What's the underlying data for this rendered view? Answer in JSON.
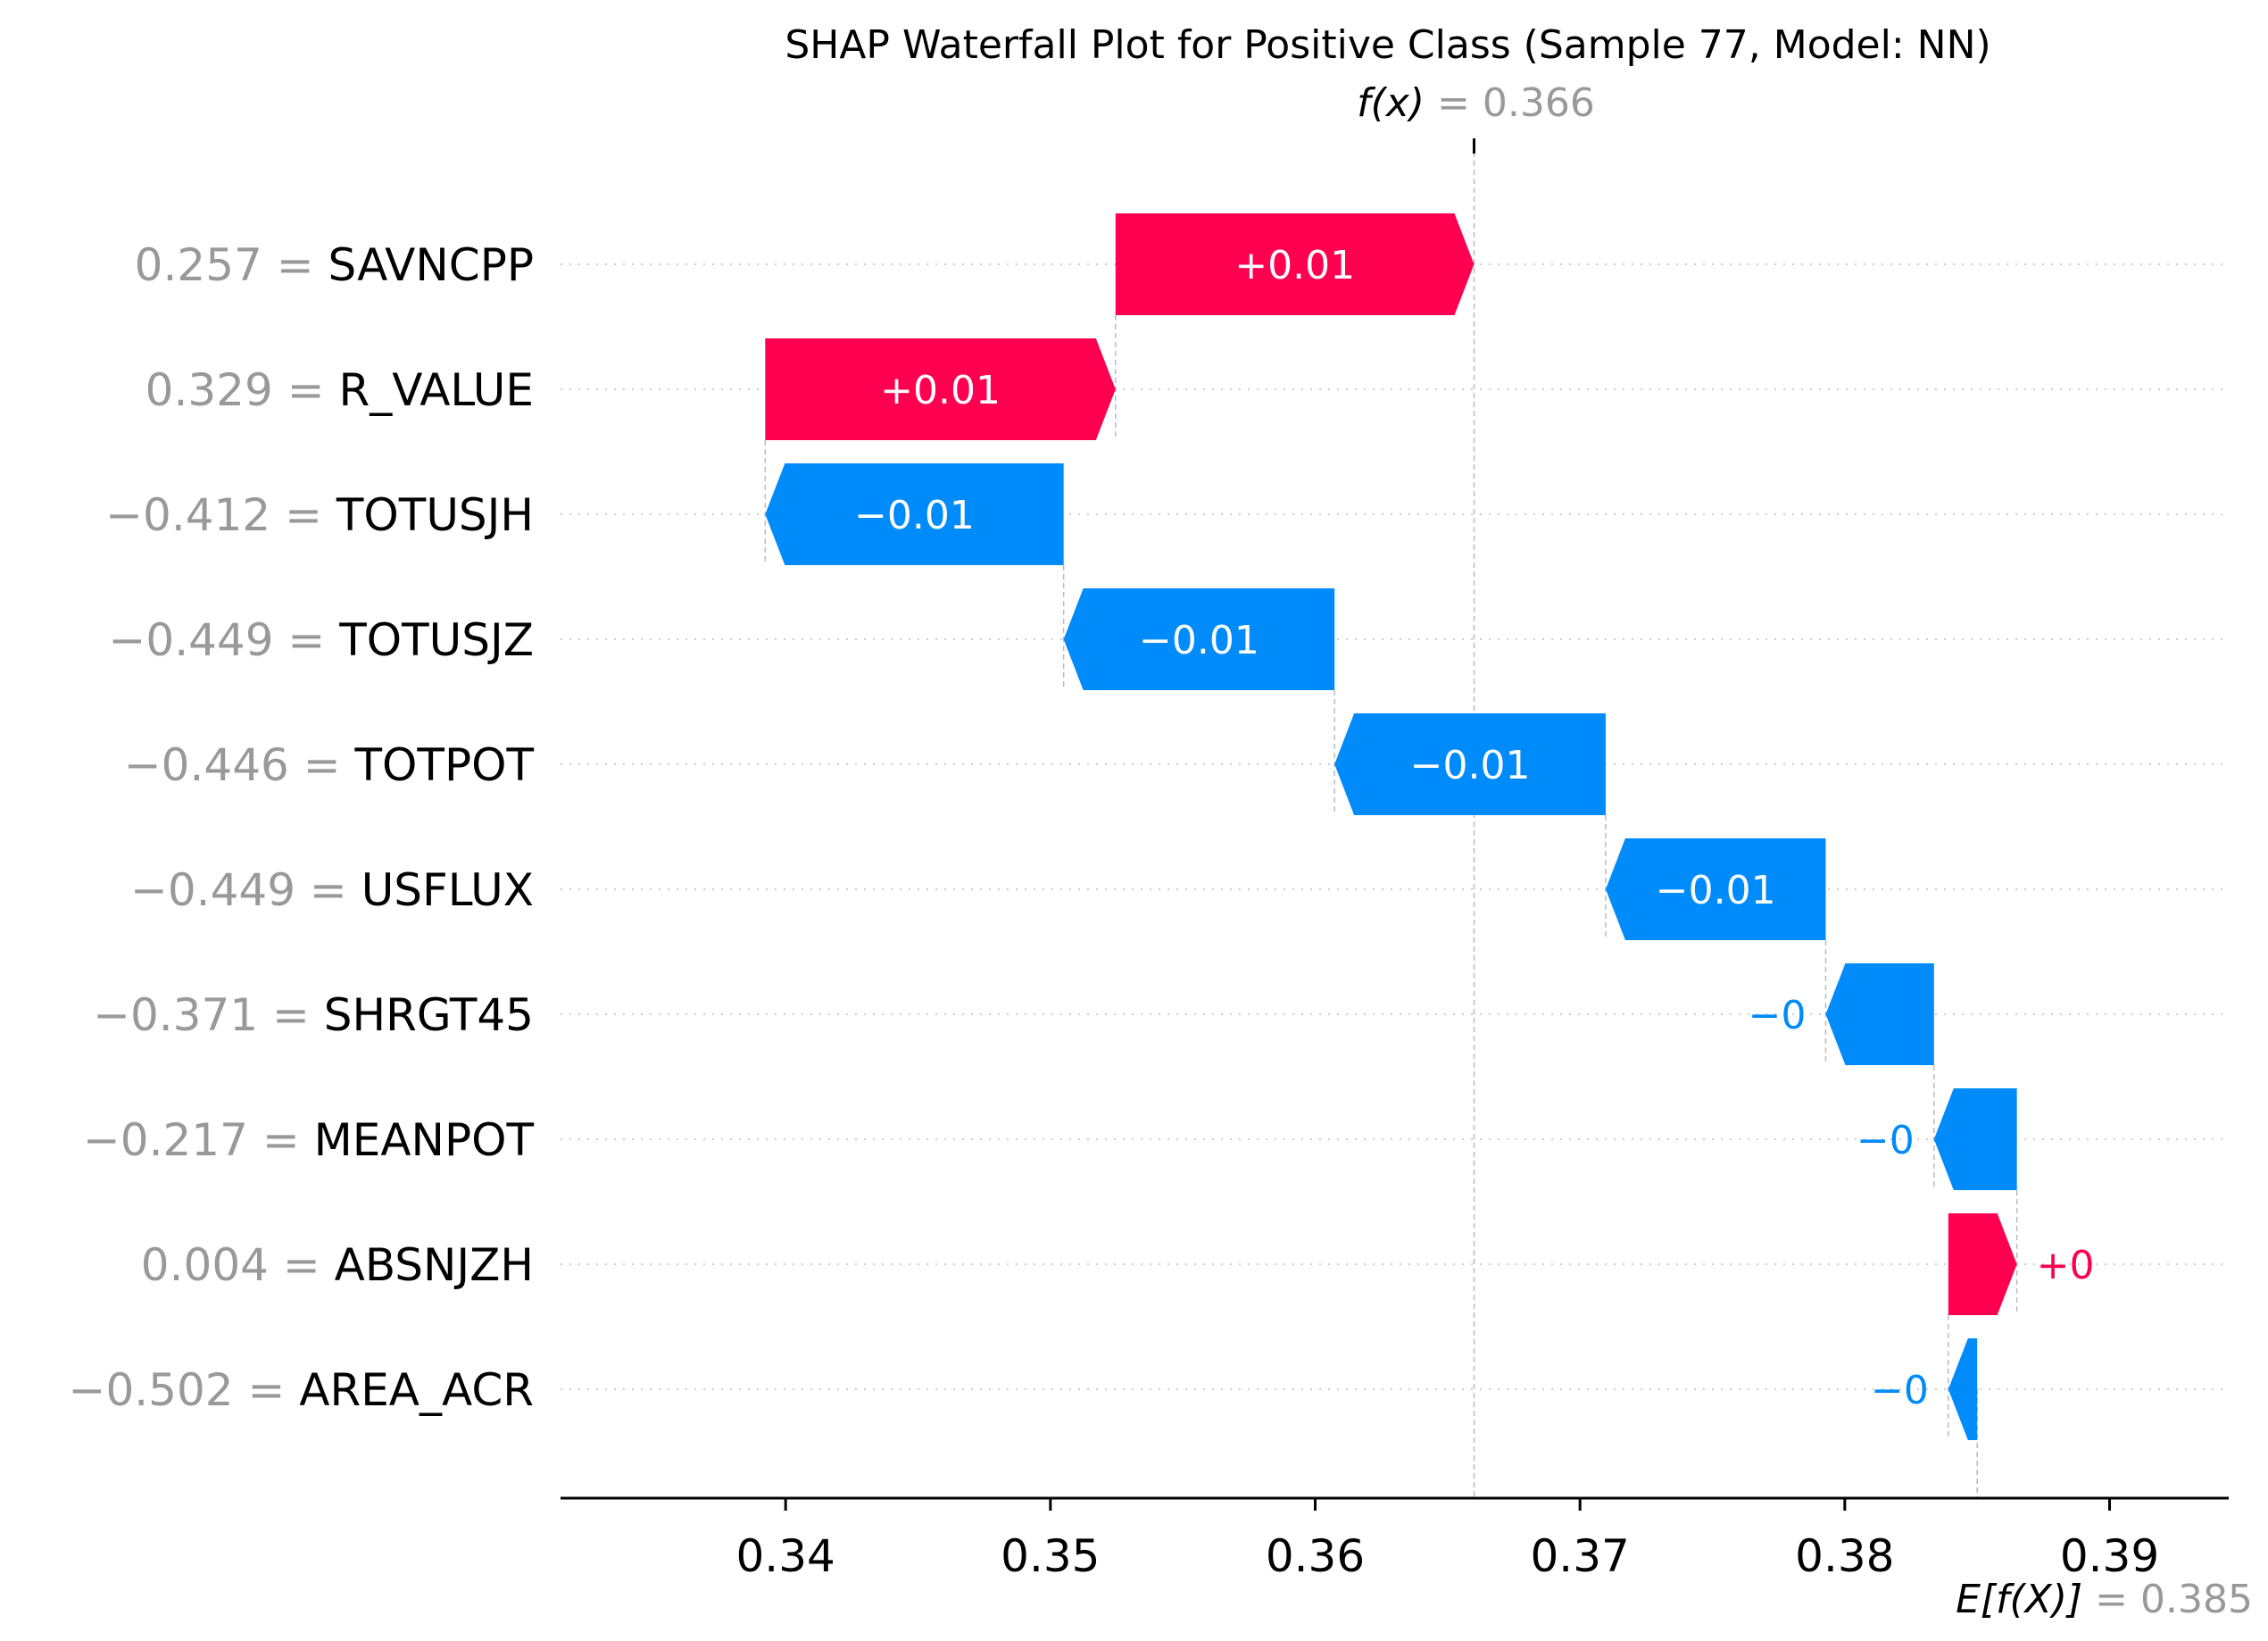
{
  "chart_data": {
    "type": "waterfall",
    "title": "SHAP Waterfall Plot for Positive Class (Sample 77, Model: NN)",
    "fx": {
      "label": "f(x)",
      "value_text": "= 0.366",
      "value": 0.366
    },
    "expected": {
      "label": "E[f(X)]",
      "value_text": "= 0.385",
      "value": 0.385
    },
    "xlim": [
      0.3315,
      0.3945
    ],
    "xticks": [
      0.34,
      0.35,
      0.36,
      0.37,
      0.38,
      0.39
    ],
    "xtick_labels": [
      "0.34",
      "0.35",
      "0.36",
      "0.37",
      "0.38",
      "0.39"
    ],
    "colors": {
      "positive": "#ff0051",
      "negative": "#008bfb",
      "value_text": "#999999",
      "connector": "#bbbbbb"
    },
    "features": [
      {
        "value": "0.257",
        "name": "SAVNCPP",
        "label": "+0.01",
        "shap": 0.01354,
        "start": 0.35246,
        "end": 0.366
      },
      {
        "value": "0.329",
        "name": "R_VALUE",
        "label": "+0.01",
        "shap": 0.01323,
        "start": 0.33923,
        "end": 0.35246
      },
      {
        "value": "−0.412",
        "name": "TOTUSJH",
        "label": "−0.01",
        "shap": -0.01127,
        "start": 0.3505,
        "end": 0.33923
      },
      {
        "value": "−0.449",
        "name": "TOTUSJZ",
        "label": "−0.01",
        "shap": -0.01023,
        "start": 0.36073,
        "end": 0.3505
      },
      {
        "value": "−0.446",
        "name": "TOTPOT",
        "label": "−0.01",
        "shap": -0.01024,
        "start": 0.37097,
        "end": 0.36073
      },
      {
        "value": "−0.449",
        "name": "USFLUX",
        "label": "−0.01",
        "shap": -0.00831,
        "start": 0.37928,
        "end": 0.37097
      },
      {
        "value": "−0.371",
        "name": "SHRGT45",
        "label": "−0",
        "shap": -0.00409,
        "start": 0.38337,
        "end": 0.37928
      },
      {
        "value": "−0.217",
        "name": "MEANPOT",
        "label": "−0",
        "shap": -0.00313,
        "start": 0.3865,
        "end": 0.38337
      },
      {
        "value": "0.004",
        "name": "ABSNJZH",
        "label": "+0",
        "shap": 0.00259,
        "start": 0.38391,
        "end": 0.3865
      },
      {
        "value": "−0.502",
        "name": "AREA_ACR",
        "label": "−0",
        "shap": -0.00109,
        "start": 0.385,
        "end": 0.38391
      }
    ]
  }
}
